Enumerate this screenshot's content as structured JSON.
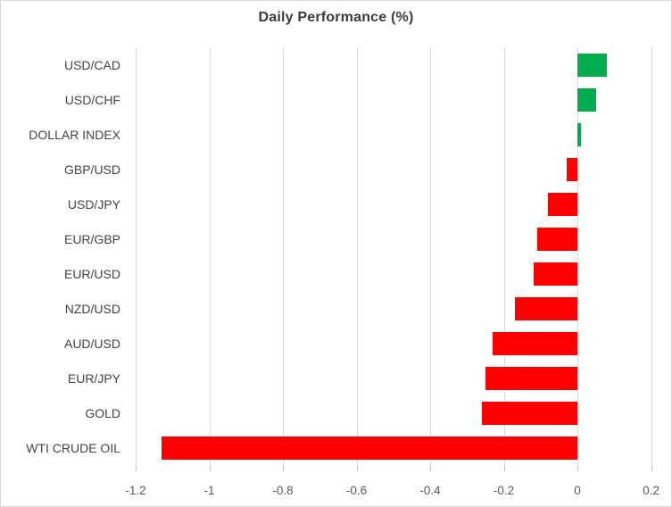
{
  "chart_data": {
    "type": "bar",
    "orientation": "horizontal",
    "title": "Daily Performance (%)",
    "categories": [
      "USD/CAD",
      "USD/CHF",
      "DOLLAR INDEX",
      "GBP/USD",
      "USD/JPY",
      "EUR/GBP",
      "EUR/USD",
      "NZD/USD",
      "AUD/USD",
      "EUR/JPY",
      "GOLD",
      "WTI CRUDE OIL"
    ],
    "values": [
      0.08,
      0.05,
      0.01,
      -0.03,
      -0.08,
      -0.11,
      -0.12,
      -0.17,
      -0.23,
      -0.25,
      -0.26,
      -1.13
    ],
    "xlabel": "",
    "ylabel": "",
    "xlim": [
      -1.2,
      0.2
    ],
    "x_ticks": [
      -1.2,
      -1.0,
      -0.8,
      -0.6,
      -0.4,
      -0.2,
      0,
      0.2
    ],
    "x_tick_labels": [
      "-1.2",
      "-1",
      "-0.8",
      "-0.6",
      "-0.4",
      "-0.2",
      "0",
      "0.2"
    ],
    "grid": true,
    "legend_position": "none",
    "positive_color": "#00AC4E",
    "negative_color": "#FF0000",
    "gridline_color": "#D9D9D9",
    "title_color": "#3B3B3B",
    "label_color": "#444444",
    "tick_label_color": "#595959"
  }
}
